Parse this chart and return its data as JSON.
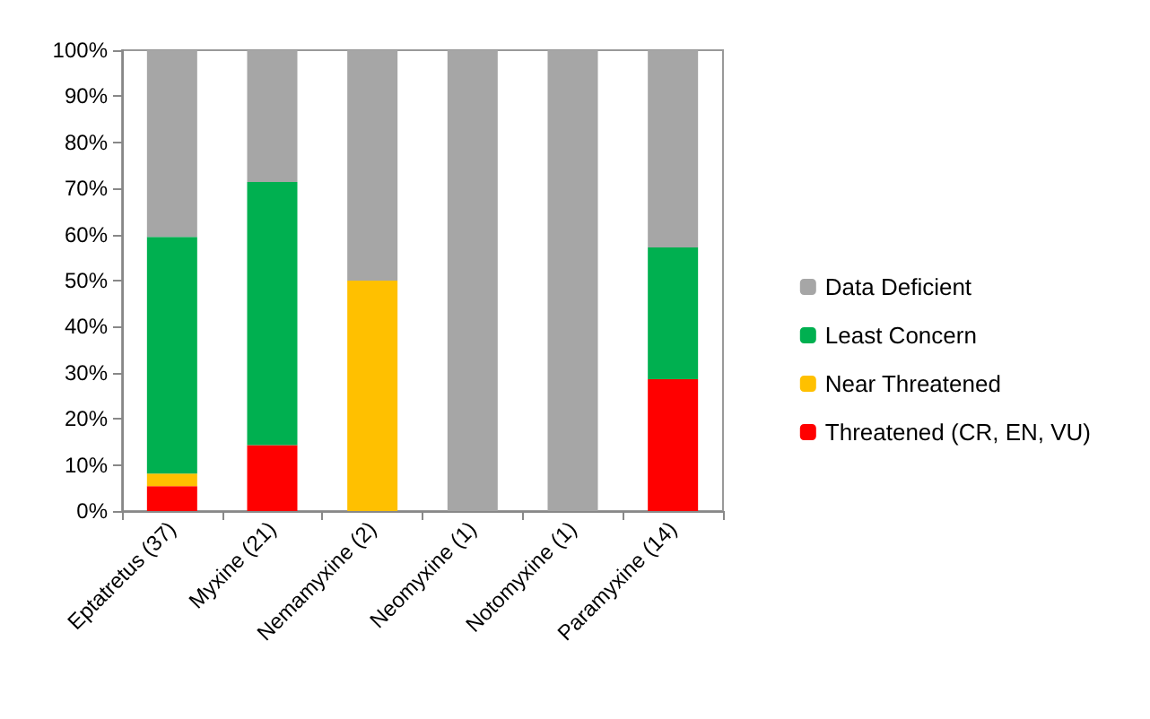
{
  "chart_data": {
    "type": "bar",
    "stacked": true,
    "categories": [
      "Eptatretus (37)",
      "Myxine (21)",
      "Nemamyxine (2)",
      "Neomyxine (1)",
      "Notomyxine (1)",
      "Paramyxine (14)"
    ],
    "series": [
      {
        "name": "Threatened (CR, EN, VU)",
        "color": "#ff0000",
        "values": [
          5.4,
          14.3,
          0,
          0,
          0,
          28.6
        ]
      },
      {
        "name": "Near Threatened",
        "color": "#ffc000",
        "values": [
          2.7,
          0,
          50,
          0,
          0,
          0
        ]
      },
      {
        "name": "Least Concern",
        "color": "#00b050",
        "values": [
          51.4,
          57.1,
          0,
          0,
          0,
          28.6
        ]
      },
      {
        "name": "Data Deficient",
        "color": "#a6a6a6",
        "values": [
          40.5,
          28.6,
          50,
          100,
          100,
          42.8
        ]
      }
    ],
    "ylim": [
      0,
      100
    ],
    "yticks": [
      {
        "value": 0,
        "label": "0%"
      },
      {
        "value": 10,
        "label": "10%"
      },
      {
        "value": 20,
        "label": "20%"
      },
      {
        "value": 30,
        "label": "30%"
      },
      {
        "value": 40,
        "label": "40%"
      },
      {
        "value": 50,
        "label": "50%"
      },
      {
        "value": 60,
        "label": "60%"
      },
      {
        "value": 70,
        "label": "70%"
      },
      {
        "value": 80,
        "label": "80%"
      },
      {
        "value": 90,
        "label": "90%"
      },
      {
        "value": 100,
        "label": "100%"
      }
    ],
    "grid": false,
    "legend": "right"
  }
}
